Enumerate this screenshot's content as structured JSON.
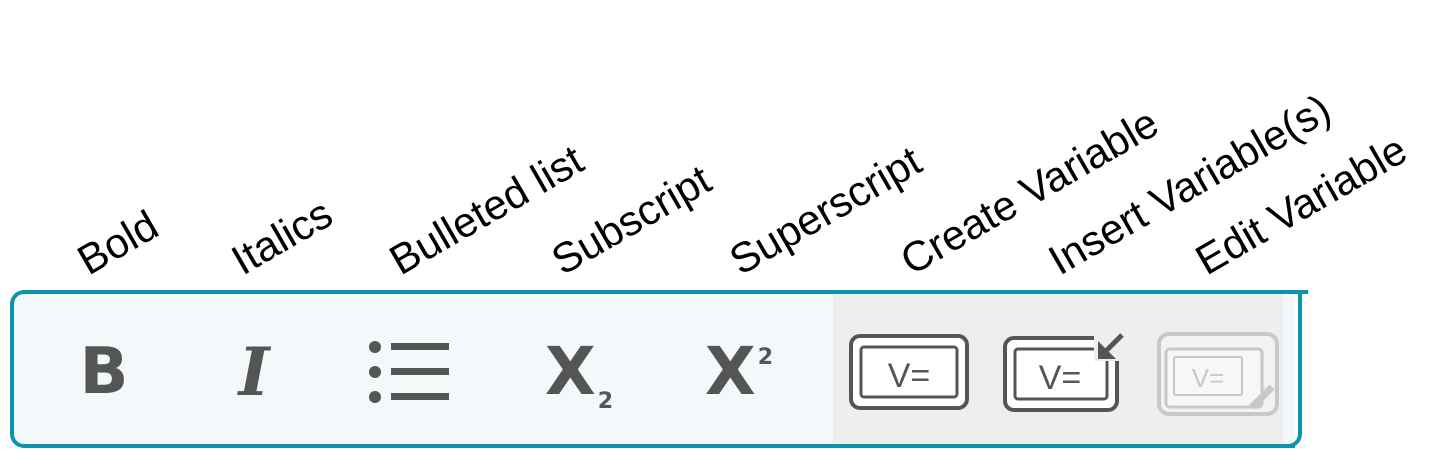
{
  "callouts": {
    "bold": "Bold",
    "italics": "Italics",
    "bulleted_list": "Bulleted list",
    "subscript": "Subscript",
    "superscript": "Superscript",
    "create_variable": "Create Variable",
    "insert_variables": "Insert Variable(s)",
    "edit_variable": "Edit Variable"
  },
  "toolbar": {
    "bold_glyph": "B",
    "italic_glyph": "I",
    "subscript_glyph": "X",
    "subscript_mark": "2",
    "superscript_glyph": "X",
    "superscript_mark": "2",
    "variable_glyph": "V=",
    "edit_variable_disabled": true
  },
  "colors": {
    "accent_border": "#0e93ad",
    "icon": "#555555",
    "disabled_icon": "#c8c8c8",
    "variable_zone": "#eeeeee",
    "toolbar_bg": "#f3f8fa"
  }
}
